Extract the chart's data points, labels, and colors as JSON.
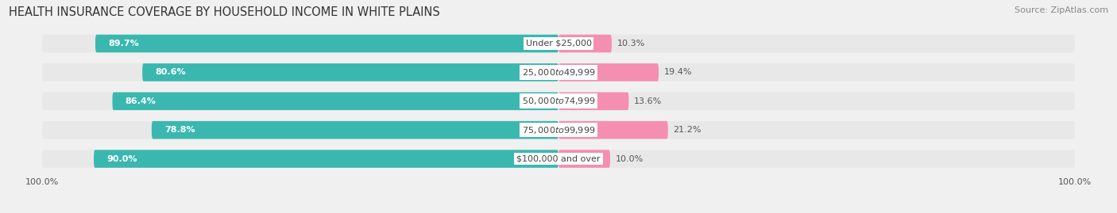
{
  "title": "HEALTH INSURANCE COVERAGE BY HOUSEHOLD INCOME IN WHITE PLAINS",
  "source": "Source: ZipAtlas.com",
  "categories": [
    "Under $25,000",
    "$25,000 to $49,999",
    "$50,000 to $74,999",
    "$75,000 to $99,999",
    "$100,000 and over"
  ],
  "with_coverage": [
    89.7,
    80.6,
    86.4,
    78.8,
    90.0
  ],
  "without_coverage": [
    10.3,
    19.4,
    13.6,
    21.2,
    10.0
  ],
  "color_with": "#3ab8b0",
  "color_without": "#f48fb1",
  "background_color": "#f0f0f0",
  "bar_background": "#e8e8e8",
  "title_fontsize": 10.5,
  "source_fontsize": 8,
  "label_fontsize": 8,
  "legend_fontsize": 9,
  "axis_label_fontsize": 8,
  "bar_height": 0.62,
  "total_width": 100
}
